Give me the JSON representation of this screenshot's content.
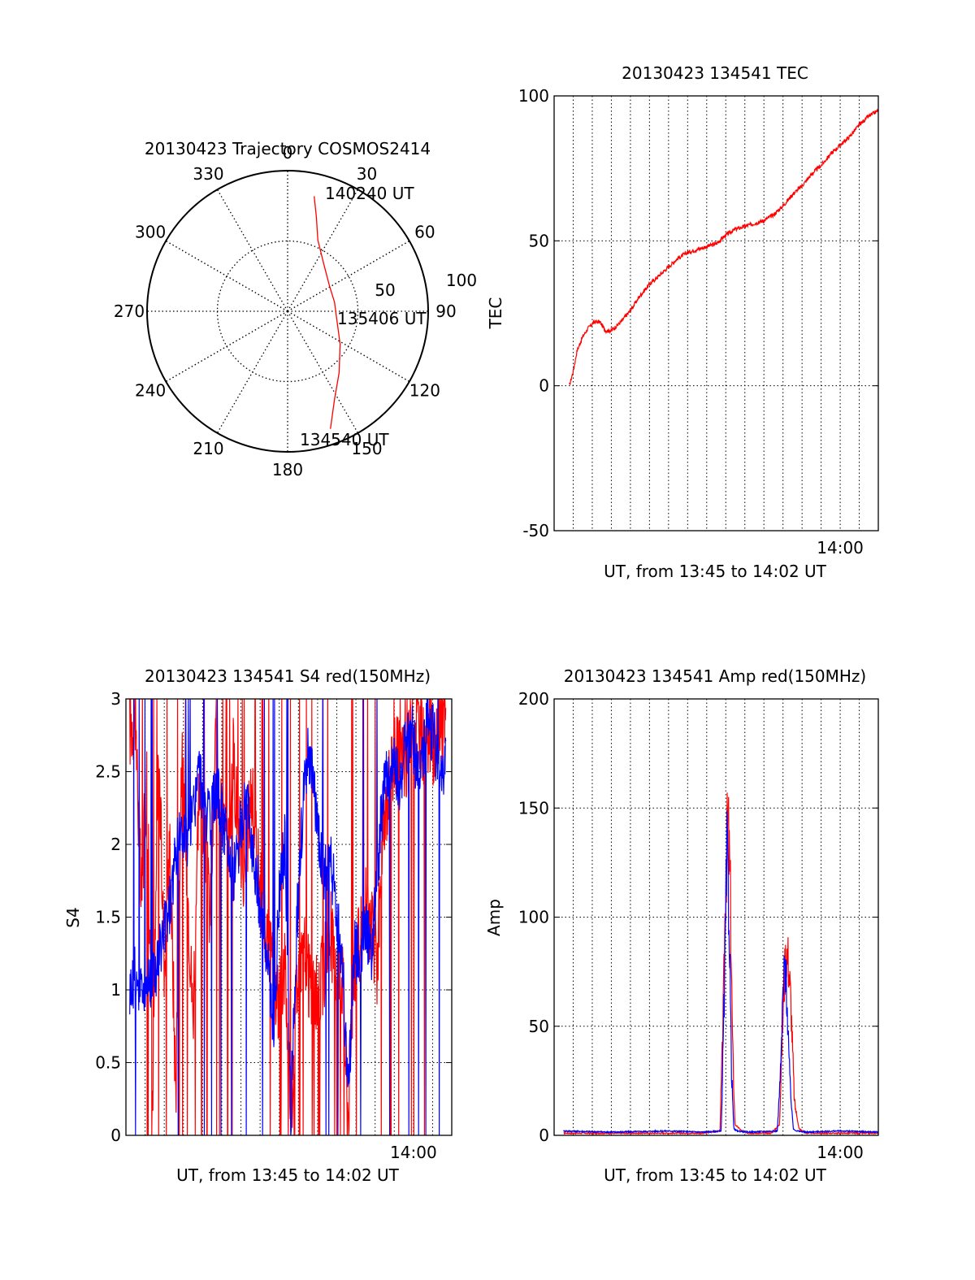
{
  "chart_data": [
    {
      "type": "polar",
      "title": "20130423 Trajectory COSMOS2414",
      "azimuth_ticks": [
        "0",
        "30",
        "60",
        "90",
        "120",
        "150",
        "180",
        "210",
        "240",
        "270",
        "300",
        "330"
      ],
      "radial_ticks": [
        "50",
        "100"
      ],
      "grid": true,
      "series": [
        {
          "color": "#ff0000",
          "points": [
            {
              "az": 13,
              "r": 84
            },
            {
              "az": 17,
              "r": 70
            },
            {
              "az": 23,
              "r": 55
            },
            {
              "az": 38,
              "r": 42
            },
            {
              "az": 58,
              "r": 35
            },
            {
              "az": 79,
              "r": 34
            },
            {
              "az": 102,
              "r": 36
            },
            {
              "az": 122,
              "r": 44
            },
            {
              "az": 140,
              "r": 57
            },
            {
              "az": 152,
              "r": 71
            },
            {
              "az": 160,
              "r": 89
            }
          ]
        }
      ],
      "annotations": [
        "140240 UT",
        "135406 UT",
        "134540 UT"
      ]
    },
    {
      "type": "line",
      "title": "20130423 134541 TEC",
      "xlabel": "UT, from 13:45 to 14:02 UT",
      "ylabel": "TEC",
      "xlim": [
        13.75,
        14.0333
      ],
      "ylim": [
        -50,
        100
      ],
      "yticks": [
        "100",
        "50",
        "0",
        "-50"
      ],
      "xticks": [
        {
          "value": 14.0,
          "label": "14:00"
        }
      ],
      "grid": true,
      "series": [
        {
          "color": "#ff0000",
          "x": [
            13.7633,
            13.7667,
            13.77,
            13.775,
            13.78,
            13.785,
            13.79,
            13.795,
            13.8,
            13.8083,
            13.8167,
            13.825,
            13.8333,
            13.8417,
            13.85,
            13.8583,
            13.8667,
            13.875,
            13.8833,
            13.8917,
            13.9,
            13.9083,
            13.9167,
            13.925,
            13.9333,
            13.9417,
            13.95,
            13.9583,
            13.9667,
            13.975,
            13.9833,
            13.9917,
            14.0,
            14.0083,
            14.0167,
            14.025,
            14.0333
          ],
          "y": [
            0,
            5,
            12,
            17,
            20,
            22,
            22,
            19,
            19,
            22,
            26,
            31,
            35,
            38,
            41,
            44,
            46,
            47,
            48,
            49,
            52,
            54,
            55,
            56,
            57,
            59,
            62,
            66,
            69,
            73,
            76,
            80,
            83,
            86,
            90,
            93,
            95
          ]
        }
      ]
    },
    {
      "type": "line",
      "title": "20130423 134541 S4 red(150MHz)",
      "xlabel": "UT, from 13:45 to 14:02 UT",
      "ylabel": "S4",
      "xlim": [
        13.75,
        14.0333
      ],
      "ylim": [
        0,
        3
      ],
      "yticks": [
        "3",
        "2.5",
        "2",
        "1.5",
        "1",
        "0.5",
        "0"
      ],
      "xticks": [
        {
          "value": 14.0,
          "label": "14:00"
        }
      ],
      "grid": true,
      "series": [
        {
          "color": "#ff0000",
          "x": [
            13.7533,
            13.7583,
            13.7633,
            13.7683,
            13.7733,
            13.7783,
            13.7833,
            13.7883,
            13.7933,
            13.7983,
            13.8033,
            13.8083,
            13.8133,
            13.8183,
            13.8233,
            13.8283,
            13.8333,
            13.8383,
            13.8433,
            13.8483,
            13.8533,
            13.8583,
            13.8633,
            13.8683,
            13.8733,
            13.8783,
            13.8833,
            13.8883,
            13.8933,
            13.8983,
            13.9033,
            13.9083,
            13.9133,
            13.9183,
            13.9233,
            13.9283,
            13.9333,
            13.9383,
            13.9433,
            13.9483,
            13.9533,
            13.9583,
            13.9633,
            13.9683,
            13.9733,
            13.9783,
            13.9833,
            13.9883,
            13.9933,
            13.9983,
            14.0033,
            14.0083,
            14.0133,
            14.0183,
            14.0233,
            14.0283
          ],
          "y": [
            2.8,
            2.9,
            1.6,
            2.5,
            0.2,
            2.7,
            1.2,
            2.0,
            0.3,
            2.6,
            1.8,
            0.8,
            2.4,
            2.0,
            1.5,
            2.8,
            2.2,
            1.9,
            2.6,
            2.1,
            1.7,
            2.4,
            2.0,
            1.6,
            1.3,
            1.1,
            0.9,
            1.2,
            0.1,
            1.0,
            1.3,
            1.1,
            0.9,
            1.0,
            1.2,
            1.4,
            1.0,
            1.1,
            0.15,
            1.2,
            1.3,
            1.6,
            1.4,
            1.2,
            2.0,
            2.4,
            2.6,
            2.7,
            2.5,
            2.8,
            2.9,
            2.7,
            2.8,
            2.6,
            2.9,
            2.8
          ]
        },
        {
          "color": "#0000ff",
          "x": [
            13.7533,
            13.7583,
            13.7633,
            13.7683,
            13.7733,
            13.7783,
            13.7833,
            13.7883,
            13.7933,
            13.7983,
            13.8033,
            13.8083,
            13.8133,
            13.8183,
            13.8233,
            13.8283,
            13.8333,
            13.8383,
            13.8433,
            13.8483,
            13.8533,
            13.8583,
            13.8633,
            13.8683,
            13.8733,
            13.8783,
            13.8833,
            13.8883,
            13.8933,
            13.8983,
            13.9033,
            13.9083,
            13.9133,
            13.9183,
            13.9233,
            13.9283,
            13.9333,
            13.9383,
            13.9433,
            13.9483,
            13.9533,
            13.9583,
            13.9633,
            13.9683,
            13.9733,
            13.9783,
            13.9833,
            13.9883,
            13.9933,
            13.9983,
            14.0033,
            14.0083,
            14.0133,
            14.0183,
            14.0233,
            14.0283
          ],
          "y": [
            1.0,
            1.1,
            1.0,
            1.05,
            1.1,
            1.2,
            1.4,
            1.6,
            1.9,
            2.1,
            2.0,
            2.2,
            2.5,
            2.3,
            2.1,
            2.4,
            2.2,
            2.0,
            1.8,
            2.0,
            2.3,
            2.1,
            1.8,
            1.5,
            1.2,
            0.6,
            1.7,
            2.0,
            0.1,
            1.4,
            2.2,
            2.6,
            2.4,
            2.0,
            1.8,
            1.9,
            1.5,
            1.2,
            0.25,
            1.3,
            1.2,
            1.5,
            1.2,
            1.8,
            2.3,
            2.5,
            2.6,
            2.4,
            2.7,
            2.8,
            2.5,
            2.6,
            2.9,
            2.7,
            2.4,
            2.6
          ]
        }
      ]
    },
    {
      "type": "line",
      "title": "20130423 134541 Amp red(150MHz)",
      "xlabel": "UT, from 13:45 to 14:02 UT",
      "ylabel": "Amp",
      "xlim": [
        13.75,
        14.0333
      ],
      "ylim": [
        0,
        200
      ],
      "yticks": [
        "200",
        "150",
        "100",
        "50",
        "0"
      ],
      "xticks": [
        {
          "value": 14.0,
          "label": "14:00"
        }
      ],
      "grid": true,
      "series": [
        {
          "color": "#ff0000",
          "x": [
            13.7583,
            13.8,
            13.85,
            13.88,
            13.895,
            13.898,
            13.9,
            13.902,
            13.904,
            13.906,
            13.908,
            13.91,
            13.914,
            13.92,
            13.94,
            13.947,
            13.949,
            13.951,
            13.953,
            13.955,
            13.957,
            13.96,
            13.964,
            13.97,
            14.0,
            14.0333
          ],
          "y": [
            1,
            1,
            1,
            1,
            2,
            60,
            120,
            144,
            110,
            40,
            5,
            4,
            2,
            1,
            1,
            5,
            40,
            70,
            86,
            78,
            60,
            15,
            3,
            1,
            1,
            1
          ]
        },
        {
          "color": "#0000ff",
          "x": [
            13.7583,
            13.8,
            13.85,
            13.88,
            13.896,
            13.899,
            13.901,
            13.903,
            13.905,
            13.907,
            13.91,
            13.92,
            13.945,
            13.948,
            13.95,
            13.952,
            13.954,
            13.956,
            13.959,
            13.962,
            13.97,
            14.0,
            14.0333
          ],
          "y": [
            2,
            1.5,
            2,
            1.5,
            2,
            70,
            130,
            100,
            30,
            3,
            2,
            1.5,
            2,
            30,
            65,
            80,
            55,
            25,
            3,
            2,
            1.5,
            2,
            1.5
          ]
        }
      ]
    }
  ]
}
